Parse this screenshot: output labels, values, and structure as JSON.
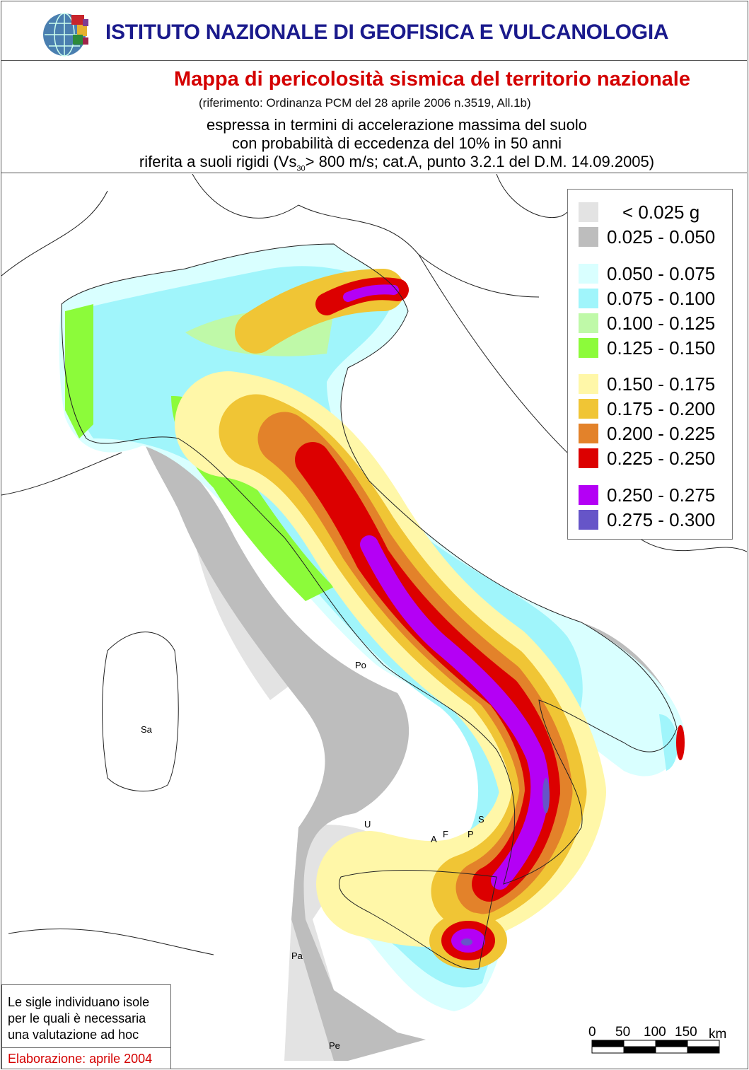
{
  "header": {
    "institute": "ISTITUTO NAZIONALE DI GEOFISICA E VULCANOLOGIA",
    "title": "Mappa di pericolosità sismica del territorio nazionale",
    "reference": "(riferimento: Ordinanza PCM del 28 aprile 2006 n.3519, All.1b)",
    "subtitle_1": "espressa in termini di accelerazione massima del suolo",
    "subtitle_2": "con probabilità di eccedenza del 10% in 50 anni",
    "subtitle_3_pre": "riferita a suoli rigidi (Vs",
    "subtitle_3_sub": "30",
    "subtitle_3_post": "> 800 m/s; cat.A, punto 3.2.1 del D.M. 14.09.2005)"
  },
  "legend": {
    "items": [
      {
        "label": "< 0.025 g",
        "color": "#e3e3e3"
      },
      {
        "label": "0.025 - 0.050",
        "color": "#bdbdbd"
      },
      {
        "label": "0.050 - 0.075",
        "color": "#d9ffff"
      },
      {
        "label": "0.075 - 0.100",
        "color": "#a0f5fb"
      },
      {
        "label": "0.100 - 0.125",
        "color": "#bff9a8"
      },
      {
        "label": "0.125 - 0.150",
        "color": "#8cfb3a"
      },
      {
        "label": "0.150 - 0.175",
        "color": "#fff7a8"
      },
      {
        "label": "0.175 - 0.200",
        "color": "#f0c535"
      },
      {
        "label": "0.200 - 0.225",
        "color": "#e3822a"
      },
      {
        "label": "0.225 - 0.250",
        "color": "#dc0000"
      },
      {
        "label": "0.250 - 0.275",
        "color": "#b400f5"
      },
      {
        "label": "0.275 - 0.300",
        "color": "#6655c8"
      }
    ]
  },
  "island_labels": [
    "Po",
    "Sa",
    "U",
    "S",
    "A",
    "F",
    "P",
    "Pa",
    "Pe"
  ],
  "note": {
    "line_1": "Le sigle individuano isole",
    "line_2": "per le quali è necessaria",
    "line_3": "una valutazione ad hoc",
    "elaboration": "Elaborazione: aprile 2004"
  },
  "scale_bar": {
    "ticks": [
      "0",
      "50",
      "100",
      "150"
    ],
    "unit": "km"
  }
}
